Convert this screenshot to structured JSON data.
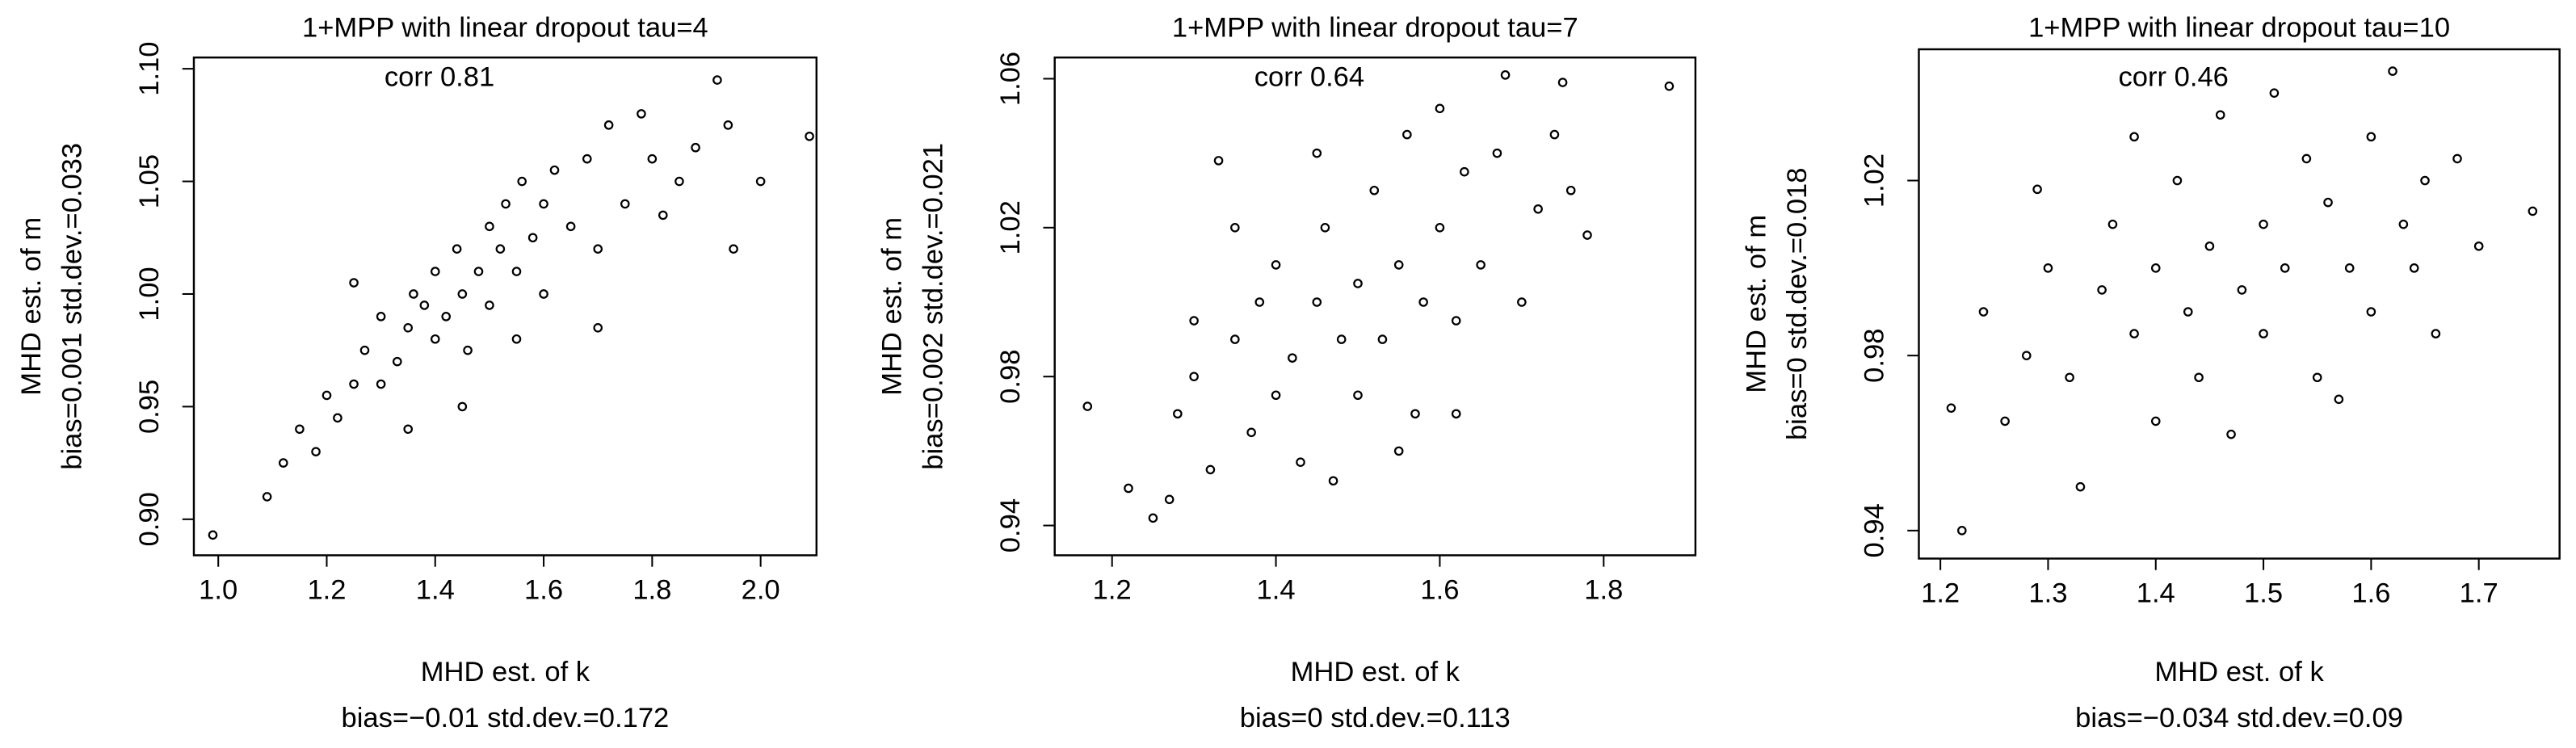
{
  "chart_data": [
    {
      "type": "scatter",
      "title": "1+MPP with linear dropout tau=4",
      "annotation": "corr 0.81",
      "xlabel": [
        "MHD est. of k",
        "bias=−0.01 std.dev.=0.172"
      ],
      "ylabel": [
        "MHD est. of m",
        "bias=0.001 std.dev.=0.033"
      ],
      "color": "#000000",
      "xlim": [
        0.955,
        2.103
      ],
      "ylim": [
        0.884,
        1.105
      ],
      "xticks": [
        {
          "value": 1.0,
          "label": "1.0"
        },
        1.2,
        1.4,
        1.6,
        1.8,
        {
          "value": 2.0,
          "label": "2.0"
        }
      ],
      "yticks": [
        {
          "value": 0.9,
          "label": "0.90"
        },
        0.95,
        {
          "value": 1.0,
          "label": "1.00"
        },
        1.05,
        {
          "value": 1.1,
          "label": "1.10"
        }
      ],
      "x": [
        0.99,
        1.09,
        1.12,
        1.15,
        1.18,
        1.2,
        1.22,
        1.25,
        1.27,
        1.3,
        1.3,
        1.33,
        1.35,
        1.36,
        1.38,
        1.4,
        1.4,
        1.42,
        1.44,
        1.45,
        1.46,
        1.48,
        1.5,
        1.5,
        1.52,
        1.53,
        1.55,
        1.56,
        1.58,
        1.6,
        1.6,
        1.62,
        1.65,
        1.68,
        1.7,
        1.72,
        1.75,
        1.78,
        1.8,
        1.82,
        1.85,
        1.88,
        1.92,
        1.94,
        1.95,
        2.0,
        2.09,
        1.35,
        1.45,
        1.25,
        1.55,
        1.7
      ],
      "values": [
        0.893,
        0.91,
        0.925,
        0.94,
        0.93,
        0.955,
        0.945,
        0.96,
        0.975,
        0.96,
        0.99,
        0.97,
        0.985,
        1.0,
        0.995,
        0.98,
        1.01,
        0.99,
        1.02,
        1.0,
        0.975,
        1.01,
        1.03,
        0.995,
        1.02,
        1.04,
        1.01,
        1.05,
        1.025,
        1.04,
        1.0,
        1.055,
        1.03,
        1.06,
        1.02,
        1.075,
        1.04,
        1.08,
        1.06,
        1.035,
        1.05,
        1.065,
        1.095,
        1.075,
        1.02,
        1.05,
        1.07,
        0.94,
        0.95,
        1.005,
        0.98,
        0.985
      ]
    },
    {
      "type": "scatter",
      "title": "1+MPP with linear dropout tau=7",
      "annotation": "corr 0.64",
      "xlabel": [
        "MHD est. of k",
        "bias=0 std.dev.=0.113"
      ],
      "ylabel": [
        "MHD est. of m",
        "bias=0.002 std.dev.=0.021"
      ],
      "color": "#000000",
      "xlim": [
        1.13,
        1.912
      ],
      "ylim": [
        0.932,
        1.0657
      ],
      "xticks": [
        1.2,
        1.4,
        1.6,
        1.8
      ],
      "yticks": [
        0.94,
        0.98,
        1.02,
        1.06
      ],
      "x": [
        1.17,
        1.22,
        1.25,
        1.27,
        1.28,
        1.3,
        1.32,
        1.33,
        1.35,
        1.37,
        1.38,
        1.4,
        1.4,
        1.42,
        1.43,
        1.45,
        1.46,
        1.47,
        1.48,
        1.5,
        1.5,
        1.52,
        1.53,
        1.55,
        1.56,
        1.57,
        1.58,
        1.6,
        1.6,
        1.62,
        1.63,
        1.65,
        1.67,
        1.68,
        1.7,
        1.72,
        1.74,
        1.75,
        1.76,
        1.78,
        1.88,
        1.35,
        1.45,
        1.55,
        1.62,
        1.3
      ],
      "values": [
        0.972,
        0.95,
        0.942,
        0.947,
        0.97,
        0.98,
        0.955,
        1.038,
        0.99,
        0.965,
        1.0,
        0.975,
        1.01,
        0.985,
        0.957,
        1.0,
        1.02,
        0.952,
        0.99,
        1.005,
        0.975,
        1.03,
        0.99,
        1.01,
        1.045,
        0.97,
        1.0,
        1.02,
        1.052,
        0.995,
        1.035,
        1.01,
        1.04,
        1.061,
        1.0,
        1.025,
        1.045,
        1.059,
        1.03,
        1.018,
        1.058,
        1.02,
        1.04,
        0.96,
        0.97,
        0.995
      ]
    },
    {
      "type": "scatter",
      "title": "1+MPP with linear dropout tau=10",
      "annotation": "corr 0.46",
      "xlabel": [
        "MHD est. of k",
        "bias=−0.034 std.dev.=0.09"
      ],
      "ylabel": [
        "MHD est. of m",
        "bias=0 std.dev.=0.018"
      ],
      "color": "#000000",
      "xlim": [
        1.18,
        1.775
      ],
      "ylim": [
        0.9336,
        1.05
      ],
      "xticks": [
        1.2,
        1.3,
        1.4,
        1.5,
        1.6,
        1.7
      ],
      "yticks": [
        0.94,
        0.98,
        1.02
      ],
      "x": [
        1.21,
        1.22,
        1.24,
        1.26,
        1.28,
        1.29,
        1.3,
        1.32,
        1.33,
        1.35,
        1.36,
        1.38,
        1.4,
        1.4,
        1.42,
        1.43,
        1.45,
        1.46,
        1.47,
        1.48,
        1.5,
        1.5,
        1.51,
        1.52,
        1.54,
        1.55,
        1.56,
        1.58,
        1.6,
        1.6,
        1.62,
        1.63,
        1.65,
        1.66,
        1.68,
        1.7,
        1.75,
        1.38,
        1.44,
        1.57,
        1.64
      ],
      "values": [
        0.968,
        0.94,
        0.99,
        0.965,
        0.98,
        1.018,
        1.0,
        0.975,
        0.95,
        0.995,
        1.01,
        0.985,
        1.0,
        0.965,
        1.02,
        0.99,
        1.005,
        1.035,
        0.962,
        0.995,
        1.01,
        0.985,
        1.04,
        1.0,
        1.025,
        0.975,
        1.015,
        1.0,
        1.03,
        0.99,
        1.045,
        1.01,
        1.02,
        0.985,
        1.025,
        1.005,
        1.013,
        1.03,
        0.975,
        0.97,
        1.0
      ]
    }
  ]
}
